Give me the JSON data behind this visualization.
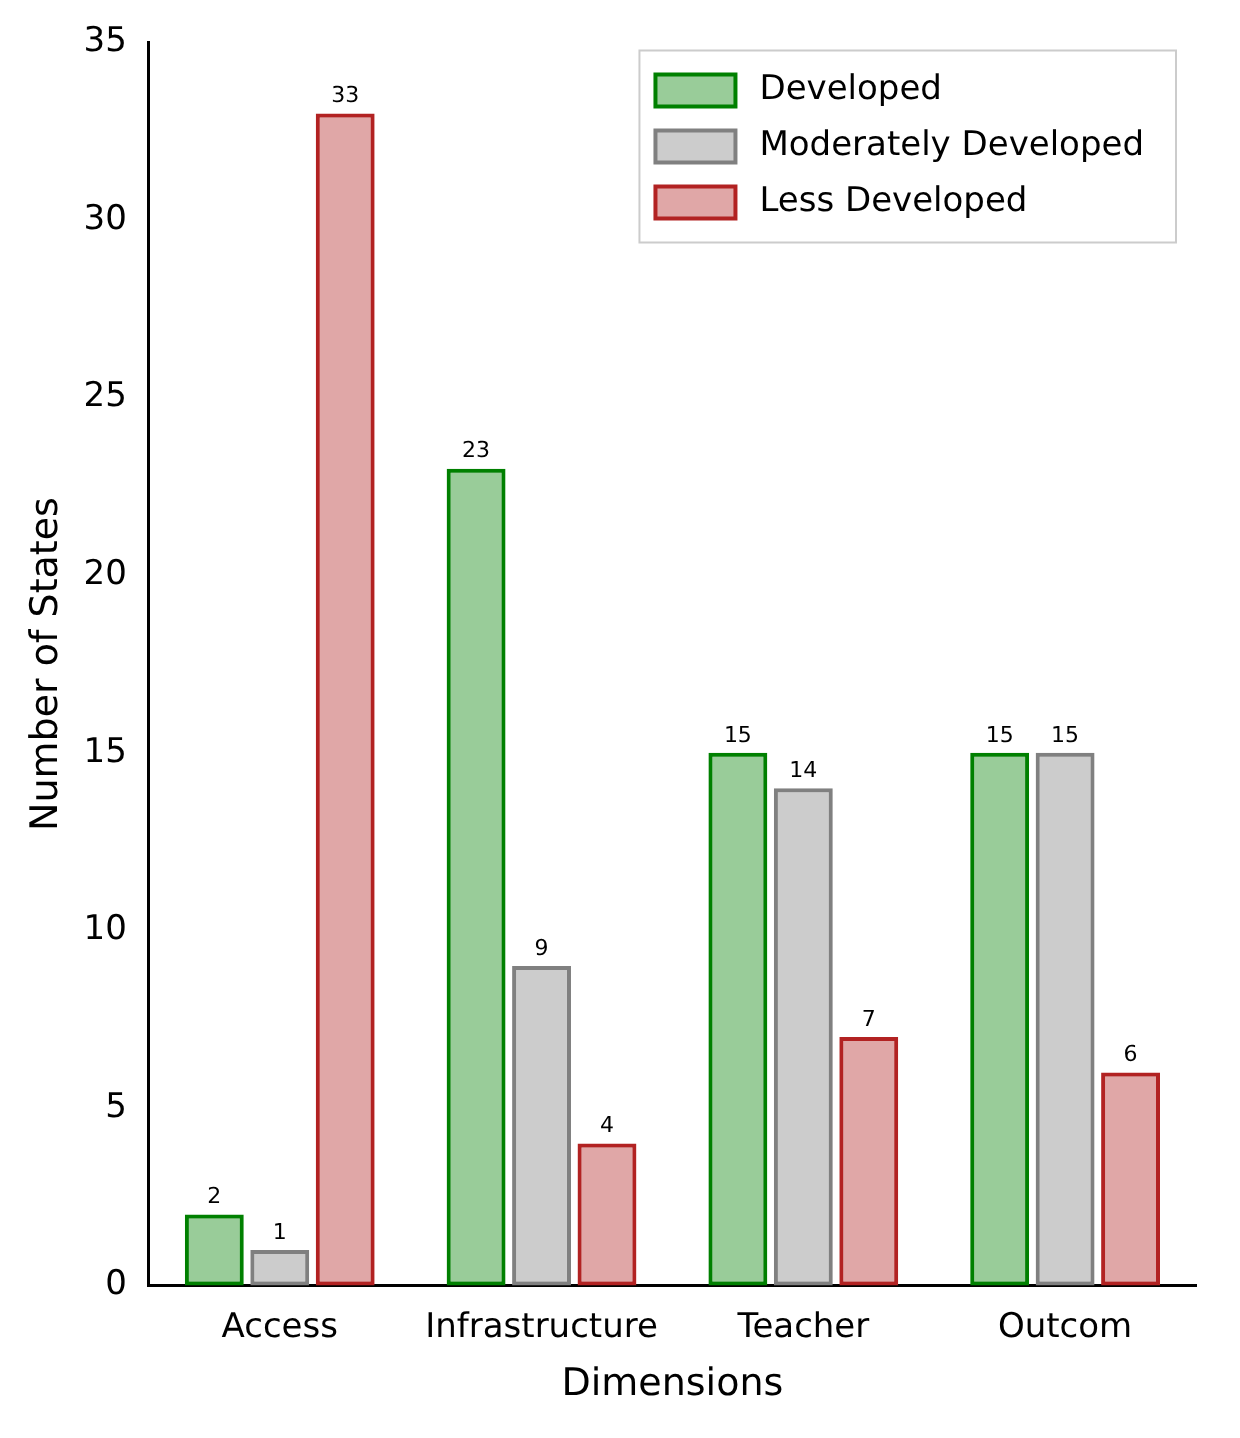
{
  "chart_data": {
    "type": "bar",
    "xlabel": "Dimensions",
    "ylabel": "Number of States",
    "categories": [
      "Access",
      "Infrastructure",
      "Teacher",
      "Outcom"
    ],
    "series": [
      {
        "name": "Developed",
        "color": "#008000",
        "values": [
          2,
          23,
          15,
          15
        ]
      },
      {
        "name": "Moderately Developed",
        "color": "#808080",
        "values": [
          1,
          9,
          14,
          15
        ]
      },
      {
        "name": "Less Developed",
        "color": "#b22222",
        "values": [
          33,
          4,
          7,
          6
        ]
      }
    ],
    "ylim": [
      0,
      35
    ],
    "yticks": [
      0,
      5,
      10,
      15,
      20,
      25,
      30,
      35
    ],
    "grid": false,
    "legend": "top right",
    "data_labels": true
  }
}
